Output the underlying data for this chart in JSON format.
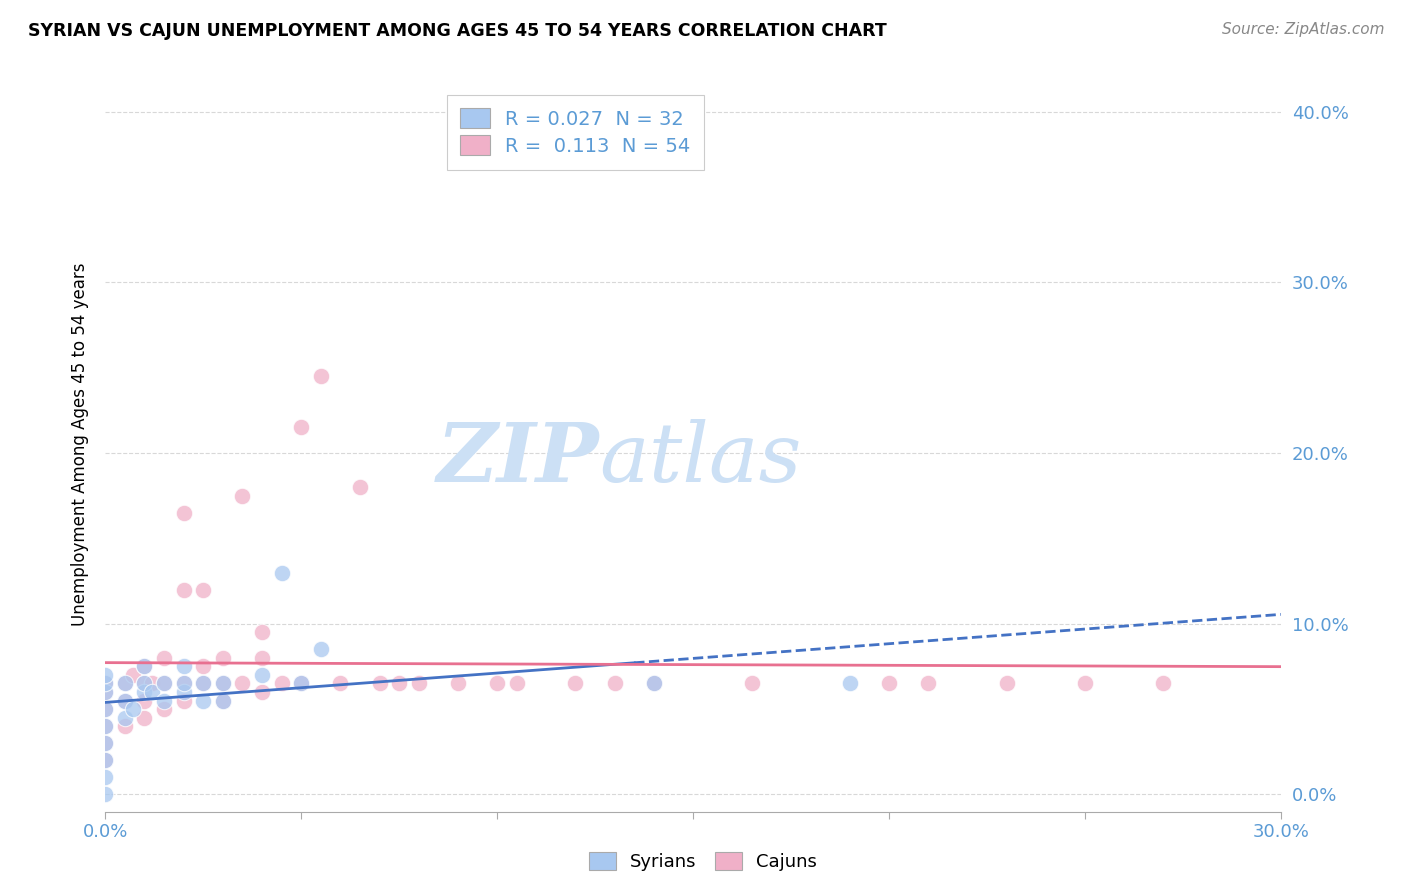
{
  "title": "SYRIAN VS CAJUN UNEMPLOYMENT AMONG AGES 45 TO 54 YEARS CORRELATION CHART",
  "source": "Source: ZipAtlas.com",
  "xlim": [
    0.0,
    0.3
  ],
  "ylim": [
    -0.01,
    0.42
  ],
  "x_tick_vals": [
    0.0,
    0.05,
    0.1,
    0.15,
    0.2,
    0.25,
    0.3
  ],
  "y_tick_vals": [
    0.0,
    0.1,
    0.2,
    0.3,
    0.4
  ],
  "syrians_x": [
    0.0,
    0.0,
    0.0,
    0.0,
    0.0,
    0.0,
    0.0,
    0.0,
    0.0,
    0.005,
    0.005,
    0.005,
    0.007,
    0.01,
    0.01,
    0.01,
    0.012,
    0.015,
    0.015,
    0.02,
    0.02,
    0.02,
    0.025,
    0.025,
    0.03,
    0.03,
    0.04,
    0.045,
    0.05,
    0.055,
    0.14,
    0.19
  ],
  "syrians_y": [
    0.0,
    0.01,
    0.02,
    0.03,
    0.04,
    0.05,
    0.06,
    0.065,
    0.07,
    0.045,
    0.055,
    0.065,
    0.05,
    0.06,
    0.065,
    0.075,
    0.06,
    0.055,
    0.065,
    0.06,
    0.065,
    0.075,
    0.055,
    0.065,
    0.055,
    0.065,
    0.07,
    0.13,
    0.065,
    0.085,
    0.065,
    0.065
  ],
  "cajuns_x": [
    0.0,
    0.0,
    0.0,
    0.0,
    0.0,
    0.0,
    0.005,
    0.005,
    0.005,
    0.007,
    0.01,
    0.01,
    0.01,
    0.01,
    0.012,
    0.015,
    0.015,
    0.015,
    0.02,
    0.02,
    0.02,
    0.02,
    0.025,
    0.025,
    0.025,
    0.03,
    0.03,
    0.03,
    0.035,
    0.035,
    0.04,
    0.04,
    0.04,
    0.045,
    0.05,
    0.05,
    0.055,
    0.06,
    0.065,
    0.07,
    0.075,
    0.08,
    0.09,
    0.1,
    0.105,
    0.12,
    0.13,
    0.14,
    0.165,
    0.2,
    0.21,
    0.23,
    0.25,
    0.27
  ],
  "cajuns_y": [
    0.02,
    0.03,
    0.04,
    0.05,
    0.06,
    0.065,
    0.04,
    0.055,
    0.065,
    0.07,
    0.045,
    0.055,
    0.065,
    0.075,
    0.065,
    0.05,
    0.065,
    0.08,
    0.055,
    0.065,
    0.12,
    0.165,
    0.065,
    0.075,
    0.12,
    0.055,
    0.065,
    0.08,
    0.065,
    0.175,
    0.06,
    0.08,
    0.095,
    0.065,
    0.065,
    0.215,
    0.245,
    0.065,
    0.18,
    0.065,
    0.065,
    0.065,
    0.065,
    0.065,
    0.065,
    0.065,
    0.065,
    0.065,
    0.065,
    0.065,
    0.065,
    0.065,
    0.065,
    0.065
  ],
  "syrian_color": "#a8c8f0",
  "cajun_color": "#f0b0c8",
  "syrian_trend_color": "#4472c4",
  "cajun_trend_color": "#e87090",
  "watermark_zip": "ZIP",
  "watermark_atlas": "atlas",
  "watermark_color": "#cce0f5",
  "R_syrian": 0.027,
  "N_syrian": 32,
  "R_cajun": 0.113,
  "N_cajun": 54,
  "background_color": "#ffffff",
  "grid_color": "#d8d8d8",
  "tick_color": "#5b9bd5",
  "ylabel": "Unemployment Among Ages 45 to 54 years"
}
